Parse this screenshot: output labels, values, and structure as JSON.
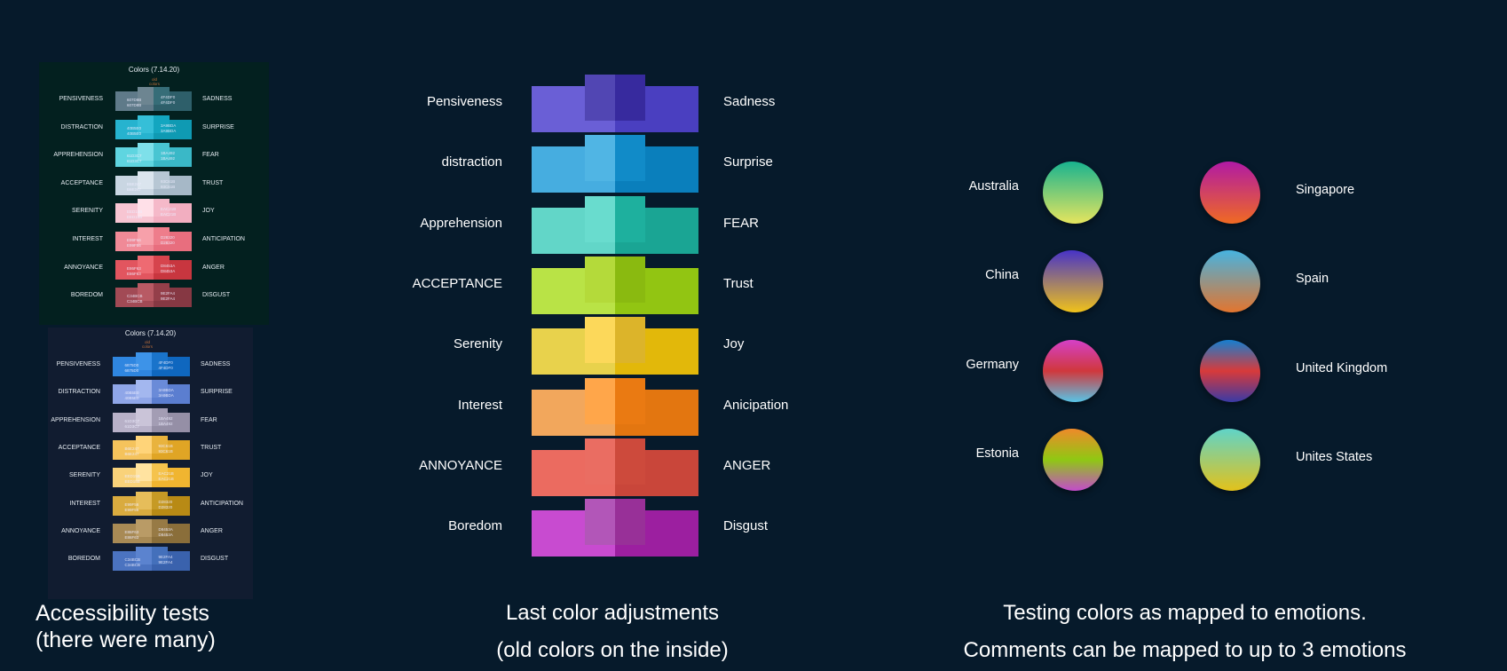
{
  "accessibility": {
    "panel_top": {
      "title": "Colors (7.14.20)",
      "note_line1": "old",
      "note_line2": "colors",
      "rows": [
        {
          "left": "PENSIVENESS",
          "right": "SADNESS",
          "code_l1": "607D8B",
          "code_l2": "607D8B",
          "code_r1": "4F4DF0",
          "code_r2": "4F4DF0",
          "colors": [
            "#5f7a89",
            "#6d8591",
            "#2e5f6a",
            "#366d78"
          ]
        },
        {
          "left": "DISTRACTION",
          "right": "SURPRISE",
          "code_l1": "40B5E0",
          "code_l2": "40B5E0",
          "code_r1": "3A9BDA",
          "code_r2": "3A9BDA",
          "colors": [
            "#26b3cf",
            "#35bfd8",
            "#0f9ab3",
            "#13a6c0"
          ]
        },
        {
          "left": "APPREHENSION",
          "right": "FEAR",
          "code_l1": "61D3C7",
          "code_l2": "61D3C7",
          "code_r1": "1BA492",
          "code_r2": "1BA492",
          "colors": [
            "#5fd5e0",
            "#7ee0ea",
            "#3ab8c7",
            "#49c5d2"
          ]
        },
        {
          "left": "ACCEPTANCE",
          "right": "TRUST",
          "code_l1": "B6E247",
          "code_l2": "B6E247",
          "code_r1": "93C61B",
          "code_r2": "93C61B",
          "colors": [
            "#c9d6e2",
            "#dbe5ee",
            "#a6b8c7",
            "#b7c7d4"
          ]
        },
        {
          "left": "SERENITY",
          "right": "JOY",
          "code_l1": "EED15B",
          "code_l2": "EED15B",
          "code_r1": "EAC21B",
          "code_r2": "EAC21B",
          "colors": [
            "#f7c5d2",
            "#ffe0e8",
            "#f2aec0",
            "#f5b9c9"
          ]
        },
        {
          "left": "INTEREST",
          "right": "ANTICIPATION",
          "code_l1": "E99F56",
          "code_l2": "E99F56",
          "code_r1": "D28320",
          "code_r2": "D28320",
          "colors": [
            "#f08a97",
            "#f7a0aa",
            "#e86e7e",
            "#ee7d8b"
          ]
        },
        {
          "left": "ANNOYANCE",
          "right": "ANGER",
          "code_l1": "E86F63",
          "code_l2": "E86F63",
          "code_r1": "D8453A",
          "code_r2": "D8453A",
          "colors": [
            "#e2555f",
            "#ee6a72",
            "#c8363f",
            "#d6444d"
          ]
        },
        {
          "left": "BOREDOM",
          "right": "DISGUST",
          "code_l1": "C34BCB",
          "code_l2": "C34BCB",
          "code_r1": "9E2FA4",
          "code_r2": "9E2FA4",
          "colors": [
            "#a24a55",
            "#b85a64",
            "#863843",
            "#943f4a"
          ]
        }
      ]
    },
    "panel_bottom": {
      "title": "Colors (7.14.20)",
      "note_line1": "old",
      "note_line2": "colors",
      "rows": [
        {
          "left": "PENSIVENESS",
          "right": "SADNESS",
          "code_l1": "6875D0",
          "code_l2": "6875D0",
          "code_r1": "4F4DF0",
          "code_r2": "4F4DF0",
          "colors": [
            "#2f86e0",
            "#3d93e8",
            "#0f67bf",
            "#1a74cb"
          ]
        },
        {
          "left": "DISTRACTION",
          "right": "SURPRISE",
          "code_l1": "40B5E0",
          "code_l2": "40B5E0",
          "code_r1": "3A9BDA",
          "code_r2": "3A9BDA",
          "colors": [
            "#8fa6e8",
            "#a3b7ef",
            "#5b7ed0",
            "#6a8bd8"
          ]
        },
        {
          "left": "APPREHENSION",
          "right": "FEAR",
          "code_l1": "61D3C7",
          "code_l2": "61D3C7",
          "code_r1": "1BA492",
          "code_r2": "1BA492",
          "colors": [
            "#b8b1c8",
            "#cac4d8",
            "#958fa6",
            "#a39db4"
          ]
        },
        {
          "left": "ACCEPTANCE",
          "right": "TRUST",
          "code_l1": "B6E247",
          "code_l2": "B6E247",
          "code_r1": "93C61B",
          "code_r2": "93C61B",
          "colors": [
            "#f5c35c",
            "#ffd479",
            "#e0a525",
            "#e9b33d"
          ]
        },
        {
          "left": "SERENITY",
          "right": "JOY",
          "code_l1": "EED15B",
          "code_l2": "EED15B",
          "code_r1": "EAC21B",
          "code_r2": "EAC21B",
          "colors": [
            "#f9d27a",
            "#ffe3a0",
            "#f0b530",
            "#f5c34d"
          ]
        },
        {
          "left": "INTEREST",
          "right": "ANTICIPATION",
          "code_l1": "E99F56",
          "code_l2": "E99F56",
          "code_r1": "D28320",
          "code_r2": "D28320",
          "colors": [
            "#d9ab3f",
            "#e6bd5a",
            "#b88a15",
            "#c69a25"
          ]
        },
        {
          "left": "ANNOYANCE",
          "right": "ANGER",
          "code_l1": "E86F63",
          "code_l2": "E86F63",
          "code_r1": "D8453A",
          "code_r2": "D8453A",
          "colors": [
            "#a88a55",
            "#b99b66",
            "#8a6e3a",
            "#977a45"
          ]
        },
        {
          "left": "BOREDOM",
          "right": "DISGUST",
          "code_l1": "C34BCB",
          "code_l2": "C34BCB",
          "code_r1": "9E2FA4",
          "code_r2": "9E2FA4",
          "colors": [
            "#4b73c0",
            "#5b83cf",
            "#3a62ad",
            "#4470bb"
          ]
        }
      ]
    },
    "caption_line1": "Accessibility tests",
    "caption_line2": "(there were many)"
  },
  "adjustments": {
    "rows": [
      {
        "left": "Pensiveness",
        "right": "Sadness",
        "outer_l": "#6a5fd6",
        "outer_r": "#4a3fc0",
        "inner_l": "#5146b3",
        "inner_r": "#372a9e"
      },
      {
        "left": "distraction",
        "right": "Surprise",
        "outer_l": "#46ade0",
        "outer_r": "#0a7fbc",
        "inner_l": "#50b5e4",
        "inner_r": "#118bc8"
      },
      {
        "left": "Apprehension",
        "right": "FEAR",
        "outer_l": "#62d6c8",
        "outer_r": "#1aa594",
        "inner_l": "#69dcce",
        "inner_r": "#1eb09e"
      },
      {
        "left": "ACCEPTANCE",
        "right": "Trust",
        "outer_l": "#b9e346",
        "outer_r": "#92c512",
        "inner_l": "#b4da3a",
        "inner_r": "#8aba10"
      },
      {
        "left": "Serenity",
        "right": "Joy",
        "outer_l": "#e8d24c",
        "outer_r": "#e2b80a",
        "inner_l": "#fcd85a",
        "inner_r": "#dcb42a"
      },
      {
        "left": "Interest",
        "right": "Anicipation",
        "outer_l": "#f2a75c",
        "outer_r": "#e37610",
        "inner_l": "#ffa64a",
        "inner_r": "#ea7a12"
      },
      {
        "left": "ANNOYANCE",
        "right": "ANGER",
        "outer_l": "#eb6b60",
        "outer_r": "#c9463a",
        "inner_l": "#ea6d62",
        "inner_r": "#cd4a3c"
      },
      {
        "left": "Boredom",
        "right": "Disgust",
        "outer_l": "#c84bd0",
        "outer_r": "#9c1fa0",
        "inner_l": "#b256b8",
        "inner_r": "#983098"
      }
    ],
    "caption_line1": "Last color adjustments",
    "caption_line2": "(old colors on the inside)"
  },
  "emotions": {
    "countries": [
      {
        "name": "Australia",
        "colors": [
          "#19b38f",
          "#e6e55e"
        ]
      },
      {
        "name": "Singapore",
        "colors": [
          "#b11aa4",
          "#f06a22"
        ]
      },
      {
        "name": "China",
        "colors": [
          "#4733c7",
          "#f0c21a"
        ]
      },
      {
        "name": "Spain",
        "colors": [
          "#47b3e0",
          "#e3752e"
        ]
      },
      {
        "name": "Germany",
        "colors": [
          "#d540c8",
          "#d0383c",
          "#58c4e6"
        ]
      },
      {
        "name": "United Kingdom",
        "colors": [
          "#157fd0",
          "#d83a3a",
          "#3a3aa6"
        ]
      },
      {
        "name": "Estonia",
        "colors": [
          "#ef8a2a",
          "#8fc813",
          "#c34bcb"
        ]
      },
      {
        "name": "Unites States",
        "colors": [
          "#60d4c8",
          "#e3c21a"
        ]
      }
    ],
    "caption_line1": "Testing colors as mapped to emotions.",
    "caption_line2": "Comments can be mapped to up to 3 emotions"
  }
}
